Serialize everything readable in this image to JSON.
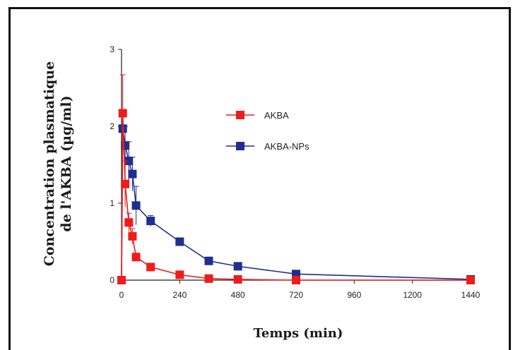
{
  "chart_data": {
    "type": "line",
    "xlabel": "Temps (min)",
    "ylabel_lines": [
      "Concentration plasmatique",
      "de l'AKBA (µg/ml)"
    ],
    "xlim": [
      0,
      1440
    ],
    "ylim": [
      0,
      3
    ],
    "x_ticks": [
      "0",
      "240",
      "480",
      "720",
      "960",
      "1200",
      "1440"
    ],
    "y_ticks": [
      "0",
      "1",
      "2",
      "3"
    ],
    "grid": false,
    "legend_position": "top-center",
    "series": [
      {
        "name": "AKBA",
        "color": "#ee1c1c",
        "marker": "square",
        "x": [
          0,
          5,
          15,
          30,
          45,
          60,
          120,
          240,
          360,
          480,
          720,
          1440
        ],
        "y": [
          0.0,
          2.17,
          1.25,
          0.75,
          0.57,
          0.3,
          0.17,
          0.07,
          0.02,
          0.01,
          0.0,
          0.0
        ],
        "err": [
          0,
          0.5,
          0.3,
          0.12,
          0.1,
          0.05,
          0.03,
          0.02,
          0.01,
          0.0,
          0.0,
          0.0
        ]
      },
      {
        "name": "AKBA-NPs",
        "color": "#1f2f8f",
        "marker": "square",
        "x": [
          0,
          5,
          15,
          30,
          45,
          60,
          120,
          240,
          360,
          480,
          720,
          1440
        ],
        "y": [
          0.0,
          1.97,
          1.75,
          1.55,
          1.38,
          0.97,
          0.77,
          0.5,
          0.25,
          0.18,
          0.08,
          0.01
        ],
        "err": [
          0,
          0.2,
          0.25,
          0.25,
          0.22,
          0.25,
          0.07,
          0.04,
          0.03,
          0.02,
          0.01,
          0.0
        ]
      }
    ]
  }
}
